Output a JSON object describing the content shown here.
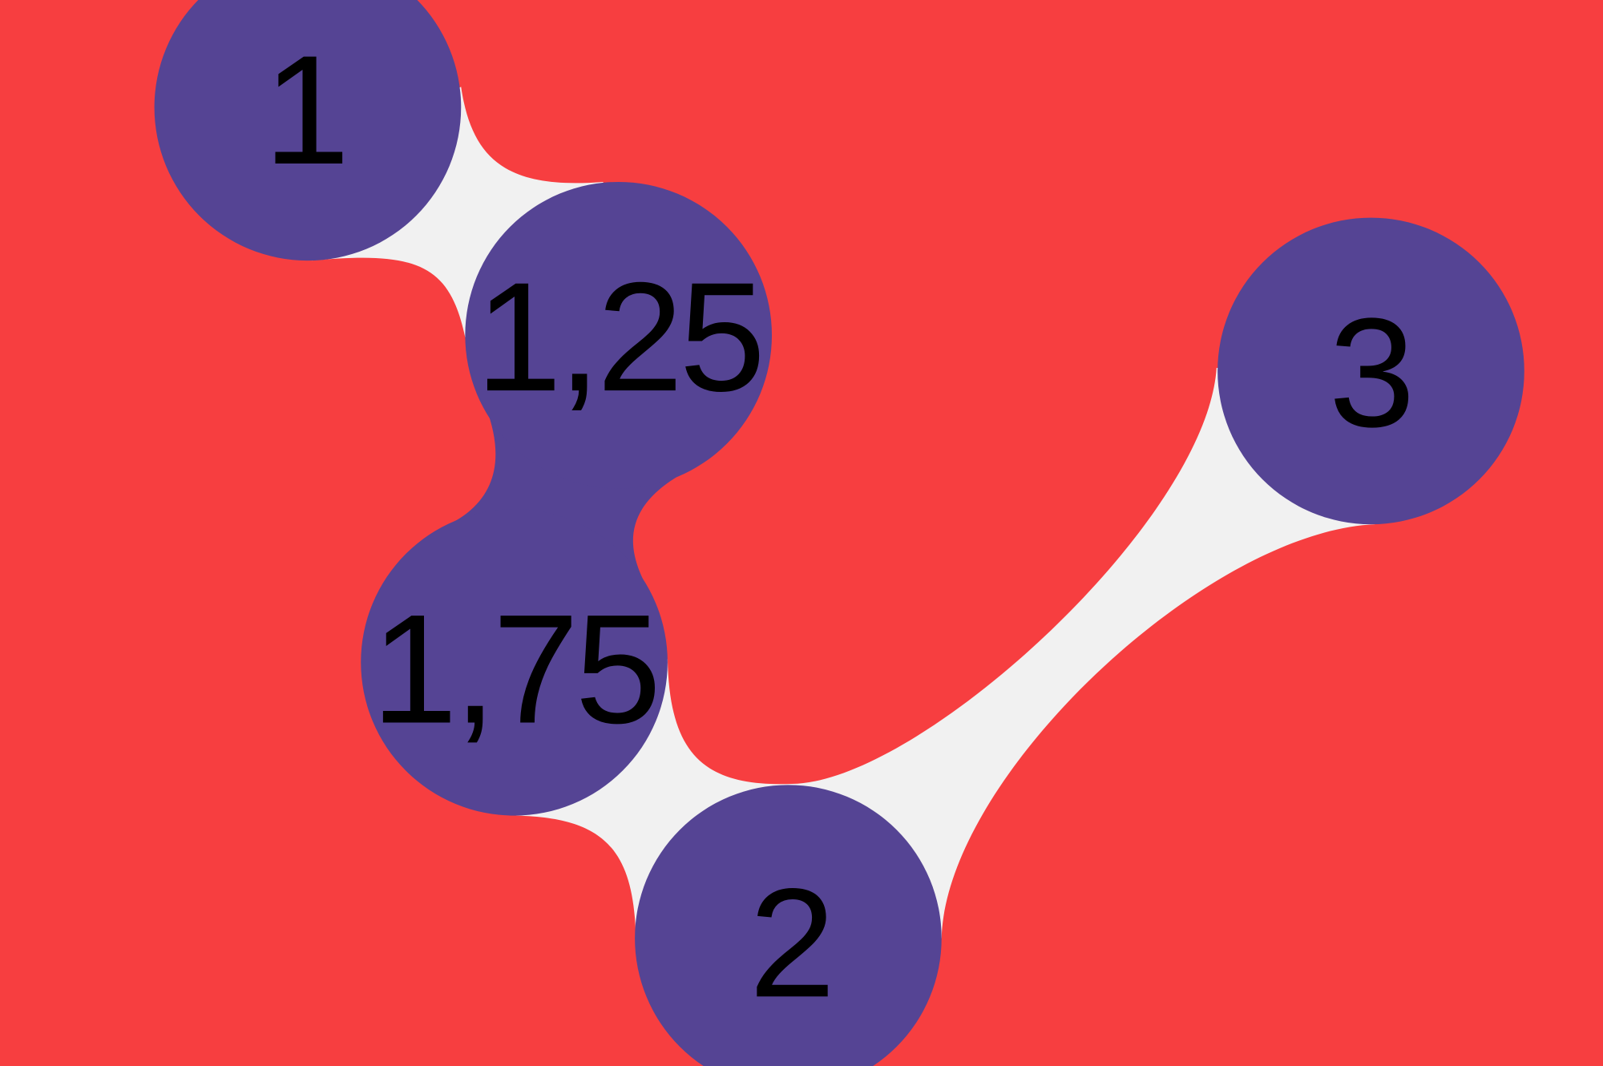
{
  "nodes": [
    {
      "label": "1"
    },
    {
      "label": "1,25"
    },
    {
      "label": "1,75"
    },
    {
      "label": "2"
    },
    {
      "label": "3"
    }
  ]
}
